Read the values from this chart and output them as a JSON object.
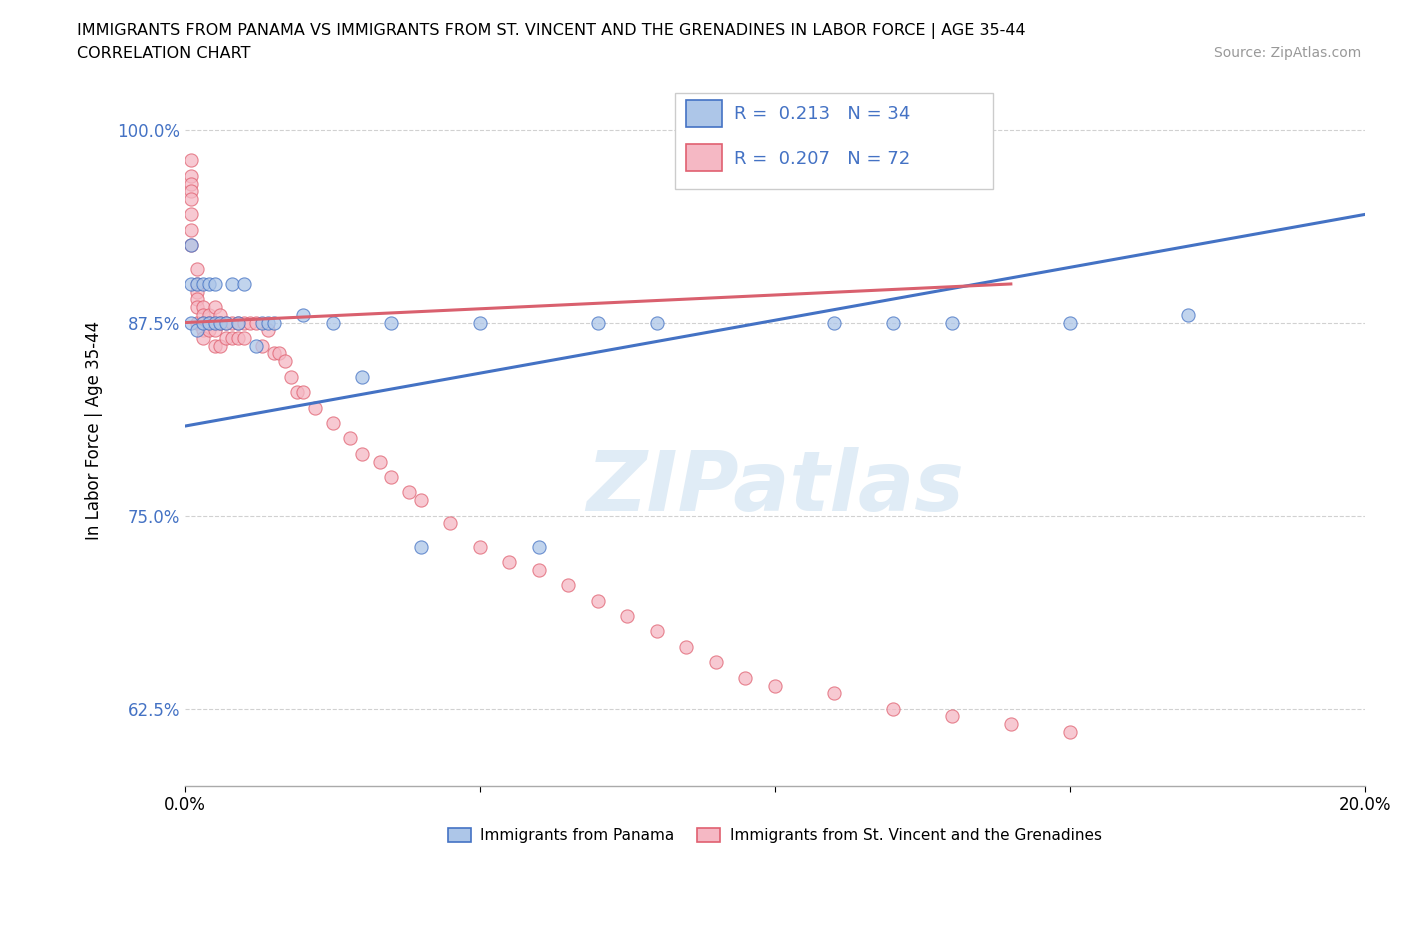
{
  "title_line1": "IMMIGRANTS FROM PANAMA VS IMMIGRANTS FROM ST. VINCENT AND THE GRENADINES IN LABOR FORCE | AGE 35-44",
  "title_line2": "CORRELATION CHART",
  "source": "Source: ZipAtlas.com",
  "ylabel": "In Labor Force | Age 35-44",
  "xlim": [
    0.0,
    0.2
  ],
  "ylim": [
    0.575,
    1.035
  ],
  "yticks": [
    0.625,
    0.75,
    0.875,
    1.0
  ],
  "ytick_labels": [
    "62.5%",
    "75.0%",
    "87.5%",
    "100.0%"
  ],
  "xticks": [
    0.0,
    0.05,
    0.1,
    0.15,
    0.2
  ],
  "xtick_labels": [
    "0.0%",
    "",
    "",
    "",
    "20.0%"
  ],
  "panama_R": "0.213",
  "panama_N": "34",
  "stvincent_R": "0.207",
  "stvincent_N": "72",
  "blue_fill": "#adc6e8",
  "blue_edge": "#4472c4",
  "pink_fill": "#f5b8c4",
  "pink_edge": "#e06070",
  "blue_line_color": "#4472c4",
  "pink_line_color": "#d9606e",
  "legend_text_color": "#4472c4",
  "watermark_color": "#cce0f0",
  "grid_color": "#cccccc",
  "background_color": "#ffffff",
  "panama_x": [
    0.001,
    0.001,
    0.001,
    0.002,
    0.002,
    0.003,
    0.003,
    0.004,
    0.004,
    0.005,
    0.005,
    0.006,
    0.007,
    0.008,
    0.009,
    0.01,
    0.012,
    0.013,
    0.014,
    0.015,
    0.02,
    0.025,
    0.03,
    0.035,
    0.04,
    0.05,
    0.06,
    0.07,
    0.08,
    0.11,
    0.12,
    0.13,
    0.15,
    0.17
  ],
  "panama_y": [
    0.875,
    0.9,
    0.925,
    0.87,
    0.9,
    0.875,
    0.9,
    0.875,
    0.9,
    0.875,
    0.9,
    0.875,
    0.875,
    0.9,
    0.875,
    0.9,
    0.86,
    0.875,
    0.875,
    0.875,
    0.88,
    0.875,
    0.84,
    0.875,
    0.73,
    0.875,
    0.73,
    0.875,
    0.875,
    0.875,
    0.875,
    0.875,
    0.875,
    0.88
  ],
  "stvincent_x": [
    0.001,
    0.001,
    0.001,
    0.001,
    0.001,
    0.001,
    0.001,
    0.001,
    0.002,
    0.002,
    0.002,
    0.002,
    0.002,
    0.002,
    0.003,
    0.003,
    0.003,
    0.003,
    0.003,
    0.004,
    0.004,
    0.004,
    0.005,
    0.005,
    0.005,
    0.005,
    0.006,
    0.006,
    0.006,
    0.007,
    0.007,
    0.008,
    0.008,
    0.009,
    0.009,
    0.01,
    0.01,
    0.011,
    0.012,
    0.013,
    0.014,
    0.015,
    0.016,
    0.017,
    0.018,
    0.019,
    0.02,
    0.022,
    0.025,
    0.028,
    0.03,
    0.033,
    0.035,
    0.038,
    0.04,
    0.045,
    0.05,
    0.055,
    0.06,
    0.065,
    0.07,
    0.075,
    0.08,
    0.085,
    0.09,
    0.095,
    0.1,
    0.11,
    0.12,
    0.13,
    0.14,
    0.15
  ],
  "stvincent_y": [
    0.98,
    0.97,
    0.965,
    0.96,
    0.955,
    0.945,
    0.935,
    0.925,
    0.91,
    0.9,
    0.895,
    0.89,
    0.885,
    0.875,
    0.885,
    0.88,
    0.875,
    0.87,
    0.865,
    0.88,
    0.875,
    0.87,
    0.885,
    0.875,
    0.87,
    0.86,
    0.88,
    0.875,
    0.86,
    0.875,
    0.865,
    0.875,
    0.865,
    0.875,
    0.865,
    0.875,
    0.865,
    0.875,
    0.875,
    0.86,
    0.87,
    0.855,
    0.855,
    0.85,
    0.84,
    0.83,
    0.83,
    0.82,
    0.81,
    0.8,
    0.79,
    0.785,
    0.775,
    0.765,
    0.76,
    0.745,
    0.73,
    0.72,
    0.715,
    0.705,
    0.695,
    0.685,
    0.675,
    0.665,
    0.655,
    0.645,
    0.64,
    0.635,
    0.625,
    0.62,
    0.615,
    0.61
  ],
  "blue_line_x": [
    0.0,
    0.2
  ],
  "blue_line_y": [
    0.808,
    0.945
  ],
  "pink_line_x": [
    0.0,
    0.14
  ],
  "pink_line_y": [
    0.875,
    0.9
  ]
}
